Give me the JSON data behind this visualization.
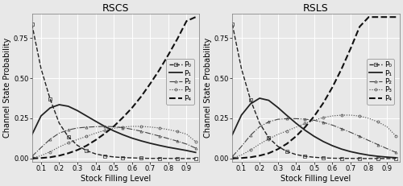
{
  "title_left": "RSCS",
  "title_right": "RSLS",
  "xlabel": "Stock Filling Level",
  "ylabel": "Channel State Probability",
  "xlim": [
    0.05,
    0.97
  ],
  "ylim": [
    -0.02,
    0.9
  ],
  "yticks": [
    0.0,
    0.25,
    0.5,
    0.75
  ],
  "xticks": [
    0.1,
    0.2,
    0.3,
    0.4,
    0.5,
    0.6,
    0.7,
    0.8,
    0.9
  ],
  "x": [
    0.05,
    0.1,
    0.15,
    0.2,
    0.25,
    0.3,
    0.35,
    0.4,
    0.45,
    0.5,
    0.55,
    0.6,
    0.65,
    0.7,
    0.75,
    0.8,
    0.85,
    0.9,
    0.95
  ],
  "rscs": {
    "P0": [
      0.835,
      0.56,
      0.37,
      0.22,
      0.135,
      0.082,
      0.049,
      0.029,
      0.017,
      0.01,
      0.006,
      0.004,
      0.002,
      0.001,
      0.001,
      0.001,
      0.0,
      0.0,
      0.0
    ],
    "P1": [
      0.148,
      0.265,
      0.315,
      0.335,
      0.325,
      0.298,
      0.265,
      0.232,
      0.2,
      0.172,
      0.148,
      0.127,
      0.11,
      0.095,
      0.082,
      0.07,
      0.06,
      0.05,
      0.038
    ],
    "P2": [
      0.013,
      0.068,
      0.12,
      0.158,
      0.178,
      0.19,
      0.195,
      0.198,
      0.2,
      0.198,
      0.192,
      0.182,
      0.17,
      0.155,
      0.14,
      0.124,
      0.108,
      0.09,
      0.065
    ],
    "P3": [
      0.003,
      0.018,
      0.042,
      0.072,
      0.098,
      0.118,
      0.138,
      0.158,
      0.175,
      0.188,
      0.196,
      0.2,
      0.2,
      0.196,
      0.19,
      0.18,
      0.168,
      0.152,
      0.105
    ],
    "P4": [
      0.001,
      0.003,
      0.008,
      0.018,
      0.033,
      0.053,
      0.08,
      0.115,
      0.155,
      0.2,
      0.255,
      0.315,
      0.385,
      0.465,
      0.55,
      0.645,
      0.745,
      0.855,
      0.88
    ]
  },
  "rsls": {
    "P0": [
      0.835,
      0.56,
      0.365,
      0.22,
      0.13,
      0.076,
      0.044,
      0.025,
      0.014,
      0.008,
      0.004,
      0.002,
      0.001,
      0.001,
      0.0,
      0.0,
      0.0,
      0.0,
      0.0
    ],
    "P1": [
      0.148,
      0.27,
      0.34,
      0.375,
      0.362,
      0.318,
      0.268,
      0.22,
      0.176,
      0.138,
      0.106,
      0.08,
      0.059,
      0.043,
      0.031,
      0.021,
      0.014,
      0.009,
      0.005
    ],
    "P2": [
      0.012,
      0.075,
      0.145,
      0.198,
      0.228,
      0.244,
      0.248,
      0.248,
      0.245,
      0.238,
      0.225,
      0.208,
      0.186,
      0.163,
      0.138,
      0.112,
      0.087,
      0.062,
      0.038
    ],
    "P3": [
      0.003,
      0.022,
      0.053,
      0.09,
      0.122,
      0.15,
      0.172,
      0.195,
      0.218,
      0.238,
      0.255,
      0.265,
      0.27,
      0.27,
      0.264,
      0.25,
      0.228,
      0.198,
      0.14
    ],
    "P4": [
      0.001,
      0.003,
      0.008,
      0.018,
      0.033,
      0.058,
      0.092,
      0.138,
      0.195,
      0.263,
      0.345,
      0.443,
      0.556,
      0.683,
      0.82,
      0.88,
      0.88,
      0.88,
      0.88
    ]
  },
  "bg_color": "#e8e8e8",
  "grid_color": "#ffffff",
  "title_fontsize": 9,
  "label_fontsize": 7,
  "tick_fontsize": 6,
  "legend_fontsize": 6.5
}
